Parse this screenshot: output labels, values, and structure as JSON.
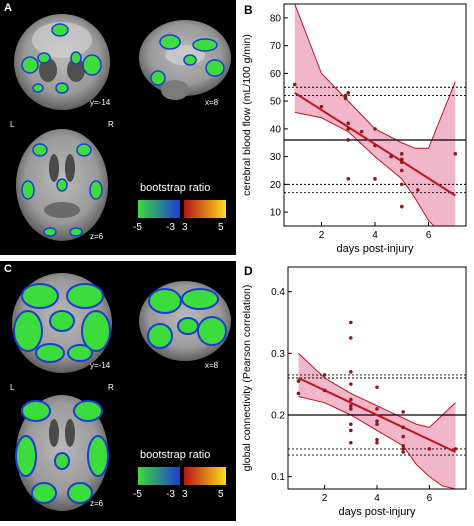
{
  "panel_a": {
    "letter": "A",
    "coronal_label": "y=-14",
    "sagittal_label": "x=8",
    "axial_label": "z=6",
    "left_label": "L",
    "right_label": "R",
    "colorbar_title": "bootstrap ratio",
    "colorbar_ticks": [
      "-5",
      "-3",
      "3",
      "5"
    ]
  },
  "panel_c": {
    "letter": "C",
    "coronal_label": "y=-14",
    "sagittal_label": "x=8",
    "axial_label": "z=6",
    "left_label": "L",
    "right_label": "R",
    "colorbar_title": "bootstrap ratio",
    "colorbar_ticks": [
      "-5",
      "-3",
      "3",
      "5"
    ]
  },
  "colors": {
    "neg_low": "#1e3cd2",
    "neg_high": "#3cdc3c",
    "pos_low": "#b41414",
    "pos_high": "#ffdc1e",
    "fit_line": "#c0141e",
    "ci_fill": "#e87aa0",
    "point": "#8b1a1a"
  },
  "chart_data": [
    {
      "panel": "B",
      "type": "scatter",
      "xlabel": "days post-injury",
      "ylabel": "cerebral blood flow (mL/100 g/min)",
      "xlim": [
        0.6,
        7.4
      ],
      "ylim": [
        5,
        85
      ],
      "xticks": [
        2,
        4,
        6
      ],
      "yticks": [
        10,
        20,
        30,
        40,
        50,
        60,
        70,
        80
      ],
      "points": [
        [
          1,
          56
        ],
        [
          2,
          48
        ],
        [
          2.9,
          51
        ],
        [
          2.9,
          52
        ],
        [
          3,
          53
        ],
        [
          3,
          42
        ],
        [
          3,
          40
        ],
        [
          3,
          36
        ],
        [
          3,
          22
        ],
        [
          3.5,
          39
        ],
        [
          4,
          34
        ],
        [
          4,
          22
        ],
        [
          4,
          40
        ],
        [
          4.6,
          30
        ],
        [
          5,
          31
        ],
        [
          5,
          28
        ],
        [
          5,
          25
        ],
        [
          5,
          29
        ],
        [
          5,
          20
        ],
        [
          5,
          12
        ],
        [
          5.6,
          18
        ],
        [
          7,
          31
        ]
      ],
      "fit": {
        "x": [
          1,
          7
        ],
        "y": [
          53,
          16
        ]
      },
      "ci_upper": [
        [
          1,
          85
        ],
        [
          2,
          60
        ],
        [
          3,
          50
        ],
        [
          4,
          40
        ],
        [
          5,
          35
        ],
        [
          5.5,
          33
        ],
        [
          6,
          33
        ],
        [
          6.5,
          45
        ],
        [
          7,
          57
        ]
      ],
      "ci_lower": [
        [
          1,
          46
        ],
        [
          2,
          44
        ],
        [
          3,
          39
        ],
        [
          4,
          30
        ],
        [
          5,
          22
        ],
        [
          5.5,
          15
        ],
        [
          6,
          7
        ],
        [
          6.5,
          2
        ],
        [
          7,
          0
        ]
      ],
      "hlines_solid": [
        36
      ],
      "hlines_dashed": [
        55,
        52,
        20,
        17
      ]
    },
    {
      "panel": "D",
      "type": "scatter",
      "xlabel": "days post-injury",
      "ylabel": "global connectivity (Pearson correlation)",
      "xlim": [
        0.6,
        7.4
      ],
      "ylim": [
        0.08,
        0.44
      ],
      "xticks": [
        2,
        4,
        6
      ],
      "yticks": [
        0.1,
        0.2,
        0.3,
        0.4
      ],
      "points": [
        [
          1,
          0.255
        ],
        [
          1,
          0.235
        ],
        [
          2,
          0.265
        ],
        [
          2,
          0.24
        ],
        [
          3,
          0.35
        ],
        [
          3,
          0.325
        ],
        [
          3,
          0.27
        ],
        [
          3,
          0.25
        ],
        [
          3,
          0.225
        ],
        [
          3,
          0.215
        ],
        [
          3,
          0.21
        ],
        [
          3,
          0.185
        ],
        [
          3,
          0.175
        ],
        [
          3,
          0.155
        ],
        [
          4,
          0.245
        ],
        [
          4,
          0.21
        ],
        [
          4,
          0.19
        ],
        [
          4,
          0.185
        ],
        [
          4,
          0.16
        ],
        [
          4,
          0.155
        ],
        [
          5,
          0.205
        ],
        [
          5,
          0.18
        ],
        [
          5,
          0.165
        ],
        [
          5,
          0.15
        ],
        [
          5,
          0.145
        ],
        [
          5,
          0.14
        ],
        [
          6,
          0.145
        ],
        [
          7,
          0.145
        ]
      ],
      "fit": {
        "x": [
          1,
          7
        ],
        "y": [
          0.26,
          0.14
        ]
      },
      "ci_upper": [
        [
          1,
          0.3
        ],
        [
          2,
          0.26
        ],
        [
          3,
          0.235
        ],
        [
          4,
          0.215
        ],
        [
          5,
          0.195
        ],
        [
          5.5,
          0.185
        ],
        [
          6,
          0.18
        ],
        [
          6.5,
          0.2
        ],
        [
          7,
          0.22
        ]
      ],
      "ci_lower": [
        [
          1,
          0.23
        ],
        [
          2,
          0.22
        ],
        [
          3,
          0.2
        ],
        [
          4,
          0.175
        ],
        [
          5,
          0.15
        ],
        [
          5.5,
          0.12
        ],
        [
          6,
          0.1
        ],
        [
          6.5,
          0.085
        ],
        [
          7,
          0.08
        ]
      ],
      "hlines_solid": [
        0.2
      ],
      "hlines_dashed": [
        0.265,
        0.26,
        0.145,
        0.135
      ]
    }
  ],
  "panel_b_letter": "B",
  "panel_d_letter": "D"
}
